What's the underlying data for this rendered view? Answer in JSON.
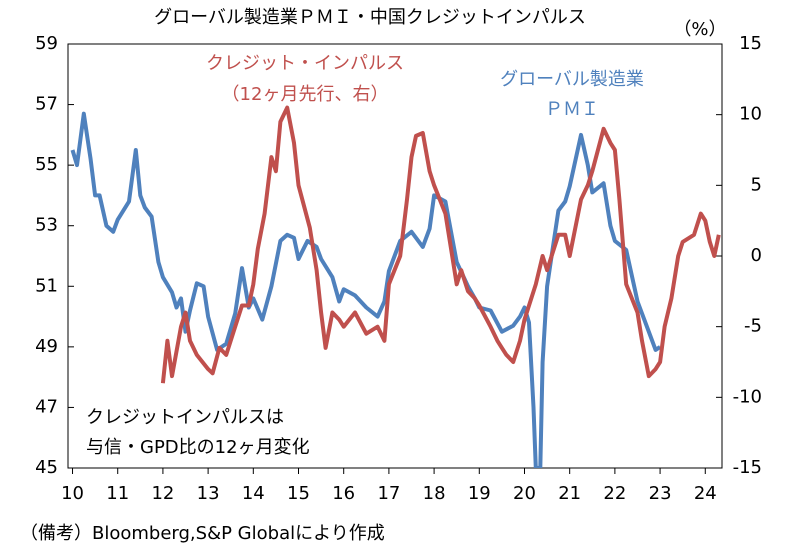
{
  "chart_data": {
    "type": "line",
    "title": "グローバル製造業ＰＭＩ・中国クレジットインパルス",
    "y2_unit": "（%）",
    "annotations": [
      "クレジット・インパルス",
      "（12ヶ月先行、右）",
      "グローバル製造業",
      "ＰＭＩ",
      "クレジットインパルスは",
      "与信・GPD比の12ヶ月変化"
    ],
    "source": "（備考）Bloomberg,S&P Globalにより作成",
    "xlim": [
      9.9,
      24.37
    ],
    "xticks": [
      10,
      11,
      12,
      13,
      14,
      15,
      16,
      17,
      18,
      19,
      20,
      21,
      22,
      23,
      24
    ],
    "ylim": [
      45,
      59
    ],
    "yticks": [
      45,
      47,
      49,
      51,
      53,
      55,
      57,
      59
    ],
    "y2lim": [
      -15,
      15
    ],
    "y2ticks": [
      -15,
      -10,
      -5,
      0,
      5,
      10,
      15
    ],
    "series": [
      {
        "name": "グローバル製造業ＰＭＩ",
        "color": "#4f81bd",
        "axis": "y",
        "x": [
          10.0,
          10.1,
          10.25,
          10.4,
          10.5,
          10.6,
          10.75,
          10.9,
          11.0,
          11.25,
          11.4,
          11.5,
          11.6,
          11.75,
          11.9,
          12.0,
          12.2,
          12.3,
          12.4,
          12.5,
          12.6,
          12.75,
          12.9,
          13.0,
          13.2,
          13.4,
          13.6,
          13.75,
          13.9,
          14.0,
          14.2,
          14.4,
          14.6,
          14.75,
          14.9,
          15.0,
          15.2,
          15.4,
          15.5,
          15.75,
          15.9,
          16.0,
          16.25,
          16.5,
          16.75,
          16.9,
          17.0,
          17.25,
          17.5,
          17.75,
          17.9,
          18.0,
          18.25,
          18.5,
          18.75,
          18.9,
          19.0,
          19.25,
          19.5,
          19.75,
          19.9,
          20.0,
          20.1,
          20.2,
          20.25,
          20.35,
          20.4,
          20.5,
          20.6,
          20.75,
          20.9,
          21.0,
          21.25,
          21.4,
          21.5,
          21.75,
          21.9,
          22.0,
          22.25,
          22.5,
          22.75,
          22.9,
          23.0
        ],
        "values": [
          55.5,
          55.0,
          56.7,
          55.2,
          54.0,
          54.0,
          53.0,
          52.8,
          53.2,
          53.8,
          55.5,
          54.0,
          53.6,
          53.3,
          51.8,
          51.3,
          50.8,
          50.3,
          50.6,
          49.5,
          50.2,
          51.1,
          51.0,
          50.0,
          48.9,
          49.1,
          50.1,
          51.6,
          50.3,
          50.6,
          49.9,
          51.0,
          52.5,
          52.7,
          52.6,
          51.9,
          52.5,
          52.3,
          51.9,
          51.3,
          50.5,
          50.9,
          50.7,
          50.3,
          50.0,
          50.5,
          51.5,
          52.5,
          52.8,
          52.3,
          52.9,
          54.0,
          53.8,
          51.8,
          51.0,
          50.6,
          50.3,
          50.2,
          49.5,
          49.7,
          50.0,
          50.3,
          49.8,
          47.0,
          45.0,
          45.0,
          48.5,
          51.0,
          52.0,
          53.5,
          53.8,
          54.3,
          56.0,
          55.0,
          54.1,
          54.4,
          53.0,
          52.5,
          52.2,
          50.5,
          49.5,
          48.9,
          49.0
        ]
      },
      {
        "name": "クレジット・インパルス",
        "color": "#c0504d",
        "axis": "y2",
        "x": [
          12.0,
          12.1,
          12.2,
          12.4,
          12.5,
          12.6,
          12.75,
          13.0,
          13.1,
          13.25,
          13.4,
          13.6,
          13.75,
          13.9,
          14.0,
          14.1,
          14.25,
          14.4,
          14.5,
          14.6,
          14.75,
          14.9,
          15.0,
          15.25,
          15.4,
          15.5,
          15.6,
          15.75,
          15.9,
          16.0,
          16.25,
          16.5,
          16.75,
          16.9,
          17.0,
          17.25,
          17.4,
          17.5,
          17.6,
          17.75,
          17.9,
          18.0,
          18.25,
          18.4,
          18.5,
          18.6,
          18.75,
          18.9,
          19.0,
          19.25,
          19.4,
          19.5,
          19.6,
          19.75,
          19.9,
          20.0,
          20.25,
          20.4,
          20.5,
          20.75,
          20.9,
          21.0,
          21.25,
          21.4,
          21.5,
          21.75,
          21.9,
          22.0,
          22.1,
          22.25,
          22.5,
          22.6,
          22.75,
          22.9,
          23.0,
          23.1,
          23.25,
          23.4,
          23.5,
          23.75,
          23.9,
          24.0,
          24.1,
          24.2,
          24.3
        ],
        "values": [
          -9.0,
          -6,
          -8.5,
          -5,
          -4,
          -6,
          -7,
          -8,
          -8.3,
          -6.5,
          -7,
          -5,
          -3.5,
          -3.5,
          -2,
          0.5,
          3,
          7,
          6,
          9.5,
          10.5,
          8,
          5,
          2,
          -1,
          -4,
          -6.5,
          -4,
          -4.5,
          -5,
          -4,
          -5.5,
          -5,
          -6,
          -2,
          0,
          4,
          7,
          8.5,
          8.7,
          6,
          5,
          3,
          0,
          -2,
          -1,
          -2.5,
          -3,
          -3.5,
          -5,
          -6,
          -6.5,
          -7,
          -7.5,
          -6,
          -4.5,
          -2,
          0,
          -1,
          1.5,
          1.5,
          0,
          4,
          5,
          6,
          9,
          8,
          7.5,
          4,
          -2,
          -4,
          -6,
          -8.5,
          -8,
          -7.5,
          -5,
          -3,
          0,
          1,
          1.5,
          3,
          2.5,
          1,
          0,
          1.5
        ]
      }
    ]
  }
}
